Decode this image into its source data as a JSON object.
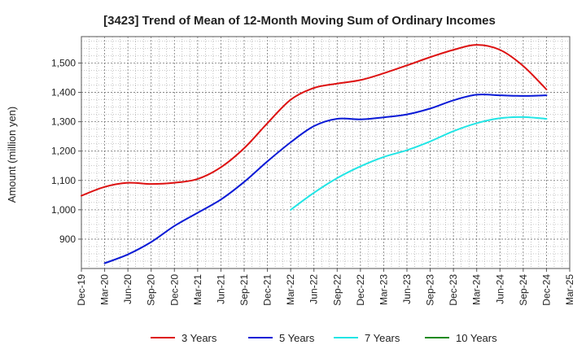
{
  "chart_data": {
    "type": "line",
    "title": "[3423]  Trend of Mean of 12-Month Moving Sum of Ordinary Incomes",
    "ylabel": "Amount (million yen)",
    "xlabel": "",
    "ylim": [
      800,
      1590
    ],
    "yticks": [
      900,
      1000,
      1100,
      1200,
      1300,
      1400,
      1500
    ],
    "ytick_labels": [
      "900",
      "1,000",
      "1,100",
      "1,200",
      "1,300",
      "1,400",
      "1,500"
    ],
    "x_ticks": [
      "Dec-19",
      "Mar-20",
      "Jun-20",
      "Sep-20",
      "Dec-20",
      "Mar-21",
      "Jun-21",
      "Sep-21",
      "Dec-21",
      "Mar-22",
      "Jun-22",
      "Sep-22",
      "Dec-22",
      "Mar-23",
      "Jun-23",
      "Sep-23",
      "Dec-23",
      "Mar-24",
      "Jun-24",
      "Sep-24",
      "Dec-24",
      "Mar-25"
    ],
    "grid": true,
    "legend_position": "bottom",
    "series": [
      {
        "name": "3 Years",
        "color": "#dd1111",
        "x": [
          "Dec-19",
          "Mar-20",
          "Jun-20",
          "Sep-20",
          "Dec-20",
          "Mar-21",
          "Jun-21",
          "Sep-21",
          "Dec-21",
          "Mar-22",
          "Jun-22",
          "Sep-22",
          "Dec-22",
          "Mar-23",
          "Jun-23",
          "Sep-23",
          "Dec-23",
          "Mar-24",
          "Jun-24",
          "Sep-24",
          "Dec-24"
        ],
        "values": [
          1048,
          1078,
          1092,
          1088,
          1092,
          1105,
          1145,
          1210,
          1295,
          1375,
          1415,
          1430,
          1442,
          1465,
          1492,
          1520,
          1545,
          1562,
          1545,
          1490,
          1410
        ]
      },
      {
        "name": "5 Years",
        "color": "#0a1ad6",
        "x": [
          "Mar-20",
          "Jun-20",
          "Sep-20",
          "Dec-20",
          "Mar-21",
          "Jun-21",
          "Sep-21",
          "Dec-21",
          "Mar-22",
          "Jun-22",
          "Sep-22",
          "Dec-22",
          "Mar-23",
          "Jun-23",
          "Sep-23",
          "Dec-23",
          "Mar-24",
          "Jun-24",
          "Sep-24",
          "Dec-24"
        ],
        "values": [
          818,
          848,
          890,
          945,
          990,
          1035,
          1095,
          1165,
          1230,
          1285,
          1310,
          1308,
          1315,
          1325,
          1345,
          1373,
          1392,
          1390,
          1388,
          1390
        ]
      },
      {
        "name": "7 Years",
        "color": "#22e5e5",
        "x": [
          "Mar-22",
          "Jun-22",
          "Sep-22",
          "Dec-22",
          "Mar-23",
          "Jun-23",
          "Sep-23",
          "Dec-23",
          "Mar-24",
          "Jun-24",
          "Sep-24",
          "Dec-24"
        ],
        "values": [
          1000,
          1058,
          1108,
          1148,
          1180,
          1203,
          1233,
          1268,
          1295,
          1312,
          1316,
          1310
        ]
      },
      {
        "name": "10 Years",
        "color": "#1a8a1a",
        "x": [],
        "values": []
      }
    ]
  }
}
